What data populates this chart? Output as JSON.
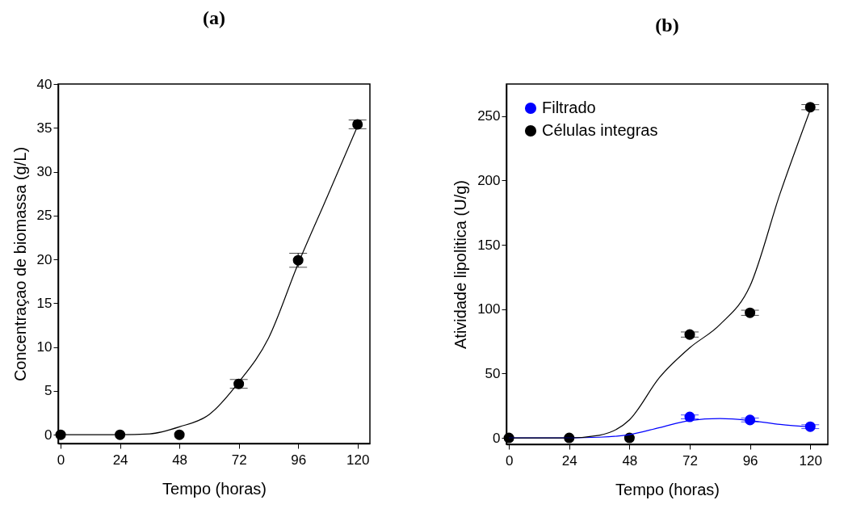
{
  "chart_data": [
    {
      "type": "scatter",
      "title": "(a)",
      "xlabel": "Tempo (horas)",
      "ylabel": "Concentraçao de biomassa (g/L)",
      "xlim": [
        -1,
        125
      ],
      "ylim": [
        -1,
        40
      ],
      "xticks": [
        0,
        24,
        48,
        72,
        96,
        120
      ],
      "yticks": [
        0,
        5,
        10,
        15,
        20,
        25,
        30,
        35,
        40
      ],
      "grid": false,
      "legend": false,
      "series": [
        {
          "color": "#000000",
          "marker": "circle",
          "x": [
            0,
            24,
            48,
            72,
            96,
            120
          ],
          "values": [
            0,
            0,
            0,
            5.8,
            19.9,
            35.4
          ],
          "errors": [
            null,
            null,
            null,
            0.5,
            0.8,
            0.5
          ]
        },
        {
          "type": "line",
          "marker": "none",
          "color": "#000000",
          "x": [
            0,
            24,
            36,
            48,
            60,
            72,
            84,
            96,
            108,
            120
          ],
          "values": [
            0,
            0,
            0.1,
            0.9,
            2.3,
            6,
            11,
            19.5,
            27.3,
            35.2
          ]
        }
      ]
    },
    {
      "type": "scatter",
      "title": "(b)",
      "xlabel": "Tempo (horas)",
      "ylabel": "Atividade lipolitica (U/g)",
      "xlim": [
        -1,
        127
      ],
      "ylim": [
        -5,
        275
      ],
      "xticks": [
        0,
        24,
        48,
        72,
        96,
        120
      ],
      "yticks": [
        0,
        50,
        100,
        150,
        200,
        250
      ],
      "grid": false,
      "legend": "top left",
      "series": [
        {
          "name": "Filtrado",
          "marker": "circle",
          "color": "#0000ff",
          "x": [
            72,
            96,
            120
          ],
          "values": [
            16.3,
            13.9,
            8.7
          ],
          "errors": [
            1.5,
            1.5,
            1.5
          ]
        },
        {
          "name": "Células integras",
          "marker": "circle",
          "color": "#000000",
          "x": [
            0,
            24,
            48,
            72,
            96,
            120
          ],
          "values": [
            0,
            0,
            0,
            80.3,
            97.2,
            257
          ],
          "errors": [
            null,
            null,
            null,
            2,
            2,
            2
          ]
        },
        {
          "type": "line",
          "marker": "none",
          "color": "#0000ff",
          "x": [
            0,
            24,
            36,
            48,
            60,
            72,
            84,
            96,
            108,
            120
          ],
          "values": [
            0,
            0,
            0.5,
            2.5,
            8,
            13.5,
            15,
            13.5,
            10.5,
            8.5
          ]
        },
        {
          "type": "line",
          "marker": "none",
          "color": "#000000",
          "x": [
            0,
            24,
            36,
            48,
            60,
            72,
            84,
            96,
            108,
            120
          ],
          "values": [
            0,
            0,
            2,
            14,
            47,
            70,
            88,
            118,
            190,
            255
          ]
        }
      ]
    }
  ]
}
